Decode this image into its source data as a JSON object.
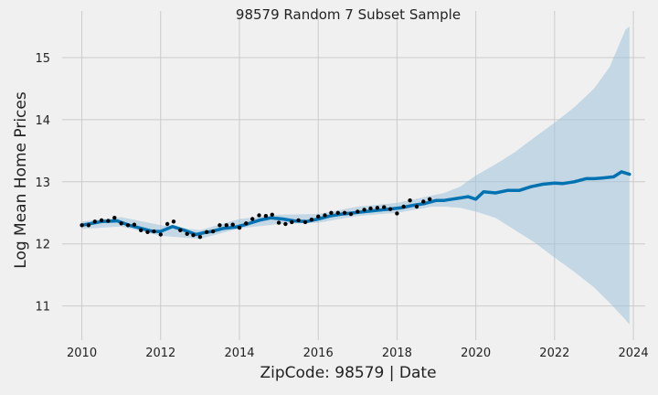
{
  "chart_data": {
    "type": "line",
    "title": "98579 Random 7 Subset Sample",
    "xlabel": "ZipCode: 98579 | Date",
    "ylabel": "Log Mean Home Prices",
    "xlim": [
      2009.5,
      2024.3
    ],
    "ylim": [
      10.45,
      15.75
    ],
    "x_ticks": [
      2010,
      2012,
      2014,
      2016,
      2018,
      2020,
      2022,
      2024
    ],
    "y_ticks": [
      11,
      12,
      13,
      14,
      15
    ],
    "grid": true,
    "colors": {
      "background": "#f0f0f0",
      "grid": "#cbcbcb",
      "forecast_line": "#0072b2",
      "uncertainty_band": "#9ec3db",
      "observed_points": "#000000"
    },
    "series": [
      {
        "kind": "observed_points",
        "x": [
          2010.0,
          2010.17,
          2010.33,
          2010.5,
          2010.67,
          2010.83,
          2011.0,
          2011.17,
          2011.33,
          2011.5,
          2011.67,
          2011.83,
          2012.0,
          2012.17,
          2012.33,
          2012.5,
          2012.67,
          2012.83,
          2013.0,
          2013.17,
          2013.33,
          2013.5,
          2013.67,
          2013.83,
          2014.0,
          2014.17,
          2014.33,
          2014.5,
          2014.67,
          2014.83,
          2015.0,
          2015.17,
          2015.33,
          2015.5,
          2015.67,
          2015.83,
          2016.0,
          2016.17,
          2016.33,
          2016.5,
          2016.67,
          2016.83,
          2017.0,
          2017.17,
          2017.33,
          2017.5,
          2017.67,
          2017.83,
          2018.0,
          2018.17,
          2018.33,
          2018.5,
          2018.67,
          2018.83
        ],
        "y": [
          12.3,
          12.3,
          12.36,
          12.38,
          12.37,
          12.42,
          12.33,
          12.3,
          12.31,
          12.22,
          12.19,
          12.2,
          12.15,
          12.32,
          12.36,
          12.22,
          12.16,
          12.14,
          12.11,
          12.19,
          12.2,
          12.3,
          12.3,
          12.31,
          12.26,
          12.33,
          12.4,
          12.46,
          12.45,
          12.47,
          12.34,
          12.32,
          12.35,
          12.38,
          12.35,
          12.39,
          12.44,
          12.46,
          12.5,
          12.5,
          12.5,
          12.48,
          12.52,
          12.55,
          12.57,
          12.58,
          12.59,
          12.56,
          12.49,
          12.6,
          12.7,
          12.6,
          12.68,
          12.72
        ]
      },
      {
        "kind": "forecast_line",
        "x": [
          2010.0,
          2010.5,
          2010.9,
          2011.2,
          2011.5,
          2011.8,
          2012.0,
          2012.3,
          2012.6,
          2012.9,
          2013.1,
          2013.3,
          2013.6,
          2013.9,
          2014.2,
          2014.5,
          2014.8,
          2015.1,
          2015.4,
          2015.7,
          2016.0,
          2016.3,
          2016.6,
          2016.9,
          2017.2,
          2017.5,
          2017.8,
          2018.1,
          2018.4,
          2018.7,
          2019.0,
          2019.2,
          2019.4,
          2019.6,
          2019.8,
          2020.0,
          2020.2,
          2020.5,
          2020.8,
          2021.1,
          2021.4,
          2021.7,
          2022.0,
          2022.2,
          2022.5,
          2022.8,
          2023.0,
          2023.2,
          2023.5,
          2023.7,
          2023.9
        ],
        "y": [
          12.3,
          12.36,
          12.37,
          12.3,
          12.25,
          12.2,
          12.2,
          12.28,
          12.22,
          12.15,
          12.18,
          12.2,
          12.25,
          12.27,
          12.32,
          12.38,
          12.42,
          12.4,
          12.37,
          12.36,
          12.4,
          12.45,
          12.48,
          12.5,
          12.52,
          12.54,
          12.56,
          12.58,
          12.62,
          12.65,
          12.7,
          12.7,
          12.72,
          12.74,
          12.76,
          12.72,
          12.84,
          12.82,
          12.86,
          12.86,
          12.92,
          12.96,
          12.98,
          12.97,
          13.0,
          13.05,
          13.05,
          13.06,
          13.08,
          13.16,
          13.12
        ]
      },
      {
        "kind": "uncertainty_band",
        "x": [
          2010.0,
          2011.0,
          2012.0,
          2013.0,
          2014.0,
          2015.0,
          2016.0,
          2017.0,
          2018.0,
          2018.9,
          2019.2,
          2019.6,
          2020.0,
          2020.5,
          2021.0,
          2021.5,
          2022.0,
          2022.5,
          2023.0,
          2023.4,
          2023.8,
          2023.9
        ],
        "lower": [
          12.24,
          12.28,
          12.13,
          12.08,
          12.25,
          12.32,
          12.34,
          12.45,
          12.5,
          12.6,
          12.6,
          12.58,
          12.52,
          12.42,
          12.22,
          12.02,
          11.78,
          11.55,
          11.3,
          11.05,
          10.78,
          10.7
        ],
        "upper": [
          12.36,
          12.43,
          12.3,
          12.22,
          12.4,
          12.47,
          12.48,
          12.6,
          12.66,
          12.78,
          12.82,
          12.92,
          13.1,
          13.28,
          13.48,
          13.72,
          13.95,
          14.2,
          14.5,
          14.85,
          15.45,
          15.5
        ]
      }
    ]
  }
}
